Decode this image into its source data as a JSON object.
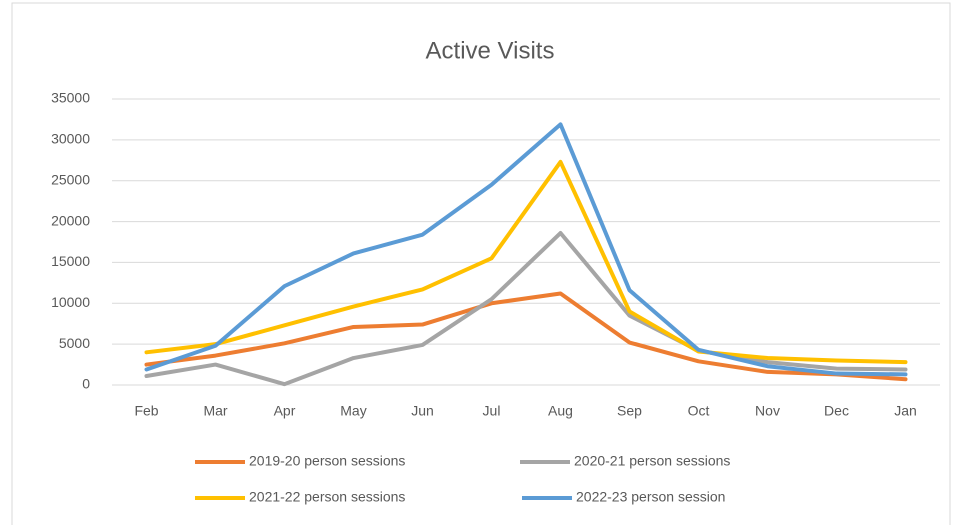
{
  "chart_data": {
    "type": "line",
    "title": "Active Visits",
    "categories": [
      "Feb",
      "Mar",
      "Apr",
      "May",
      "Jun",
      "Jul",
      "Aug",
      "Sep",
      "Oct",
      "Nov",
      "Dec",
      "Jan"
    ],
    "series": [
      {
        "name": "2019-20 person sessions",
        "color": "#ED7D31",
        "values": [
          2500,
          3600,
          5100,
          7100,
          7400,
          10000,
          11200,
          5200,
          2900,
          1600,
          1300,
          700
        ]
      },
      {
        "name": "2020-21 person sessions",
        "color": "#A5A5A5",
        "values": [
          1100,
          2500,
          100,
          3300,
          4900,
          10500,
          18600,
          8500,
          4200,
          2800,
          2000,
          1900
        ]
      },
      {
        "name": "2021-22 person sessions",
        "color": "#FFC000",
        "values": [
          4000,
          5000,
          7300,
          9600,
          11700,
          15500,
          27300,
          9000,
          4100,
          3300,
          3000,
          2800
        ]
      },
      {
        "name": "2022-23 person session",
        "color": "#5B9BD5",
        "values": [
          1900,
          4800,
          12100,
          16100,
          18400,
          24500,
          31900,
          11600,
          4300,
          2300,
          1400,
          1300
        ]
      }
    ],
    "ylim": [
      0,
      35000
    ],
    "yticks": [
      0,
      5000,
      10000,
      15000,
      20000,
      25000,
      30000,
      35000
    ],
    "grid": true,
    "legend": "bottom"
  }
}
